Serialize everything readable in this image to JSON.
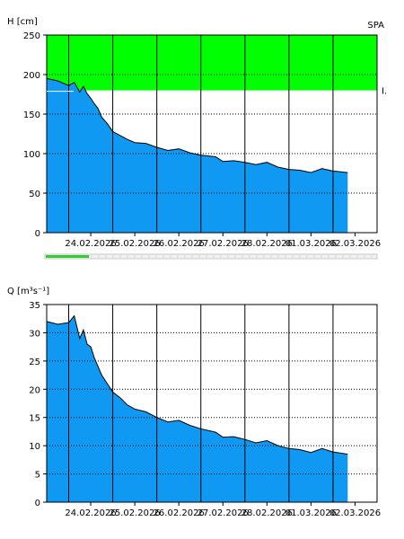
{
  "chart_data": [
    {
      "type": "area",
      "ylabel": "H [cm]",
      "corner_label": "SPA",
      "threshold_label": "I.",
      "ylim": [
        0,
        250
      ],
      "yticks": [
        "0",
        "50",
        "100",
        "150",
        "200",
        "250"
      ],
      "xlim": [
        "23.02.2026 12:00",
        "03.03.2026 00:00"
      ],
      "x_tick_labels": [
        "24.02.2026",
        "25.02.2026",
        "26.02.2026",
        "27.02.2026",
        "28.02.2026",
        "01.03.2026",
        "02.03.2026"
      ],
      "grid": true,
      "flood_band": {
        "from": 180,
        "to": 250,
        "color": "#00ff00",
        "name": "I."
      },
      "fill_color": "#0f99f2",
      "x": [
        "23.02.2026 12:00",
        "23.02.2026 18:00",
        "24.02.2026 00:00",
        "24.02.2026 03:00",
        "24.02.2026 06:00",
        "24.02.2026 08:00",
        "24.02.2026 10:00",
        "24.02.2026 12:00",
        "24.02.2026 14:00",
        "24.02.2026 16:00",
        "24.02.2026 18:00",
        "24.02.2026 21:00",
        "25.02.2026 00:00",
        "25.02.2026 04:00",
        "25.02.2026 08:00",
        "25.02.2026 12:00",
        "25.02.2026 18:00",
        "26.02.2026 00:00",
        "26.02.2026 06:00",
        "26.02.2026 12:00",
        "26.02.2026 18:00",
        "27.02.2026 00:00",
        "27.02.2026 08:00",
        "27.02.2026 12:00",
        "27.02.2026 18:00",
        "28.02.2026 00:00",
        "28.02.2026 06:00",
        "28.02.2026 12:00",
        "28.02.2026 18:00",
        "01.03.2026 00:00",
        "01.03.2026 06:00",
        "01.03.2026 12:00",
        "01.03.2026 18:00",
        "02.03.2026 00:00",
        "02.03.2026 08:00"
      ],
      "values": [
        195,
        192,
        186,
        190,
        178,
        185,
        176,
        170,
        163,
        157,
        146,
        138,
        128,
        123,
        118,
        114,
        113,
        108,
        104,
        106,
        101,
        98,
        96,
        90,
        91,
        89,
        86,
        89,
        83,
        80,
        79,
        76,
        81,
        78,
        76
      ]
    },
    {
      "type": "area",
      "ylabel": "Q [m³s⁻¹]",
      "ylim": [
        0,
        35
      ],
      "yticks": [
        "0",
        "5",
        "10",
        "15",
        "20",
        "25",
        "30",
        "35"
      ],
      "xlim": [
        "23.02.2026 12:00",
        "03.03.2026 00:00"
      ],
      "x_tick_labels": [
        "24.02.2026",
        "25.02.2026",
        "26.02.2026",
        "27.02.2026",
        "28.02.2026",
        "01.03.2026",
        "02.03.2026"
      ],
      "grid": true,
      "fill_color": "#0f99f2",
      "x": [
        "23.02.2026 12:00",
        "23.02.2026 18:00",
        "24.02.2026 00:00",
        "24.02.2026 03:00",
        "24.02.2026 06:00",
        "24.02.2026 08:00",
        "24.02.2026 10:00",
        "24.02.2026 12:00",
        "24.02.2026 14:00",
        "24.02.2026 16:00",
        "24.02.2026 18:00",
        "24.02.2026 21:00",
        "25.02.2026 00:00",
        "25.02.2026 04:00",
        "25.02.2026 08:00",
        "25.02.2026 12:00",
        "25.02.2026 18:00",
        "26.02.2026 00:00",
        "26.02.2026 06:00",
        "26.02.2026 12:00",
        "26.02.2026 18:00",
        "27.02.2026 00:00",
        "27.02.2026 08:00",
        "27.02.2026 12:00",
        "27.02.2026 18:00",
        "28.02.2026 00:00",
        "28.02.2026 06:00",
        "28.02.2026 12:00",
        "28.02.2026 18:00",
        "01.03.2026 00:00",
        "01.03.2026 06:00",
        "01.03.2026 12:00",
        "01.03.2026 18:00",
        "02.03.2026 00:00",
        "02.03.2026 08:00"
      ],
      "values": [
        32,
        31.5,
        31.8,
        33,
        29,
        30.5,
        28,
        27.5,
        25.5,
        24,
        22.5,
        21,
        19.5,
        18.5,
        17.2,
        16.5,
        16,
        15,
        14.2,
        14.5,
        13.6,
        13,
        12.4,
        11.5,
        11.6,
        11.1,
        10.5,
        10.9,
        10,
        9.5,
        9.3,
        8.8,
        9.5,
        8.9,
        8.5
      ]
    }
  ],
  "scrollbar": {
    "position_fraction": 0.13,
    "color": "#33cc33"
  }
}
